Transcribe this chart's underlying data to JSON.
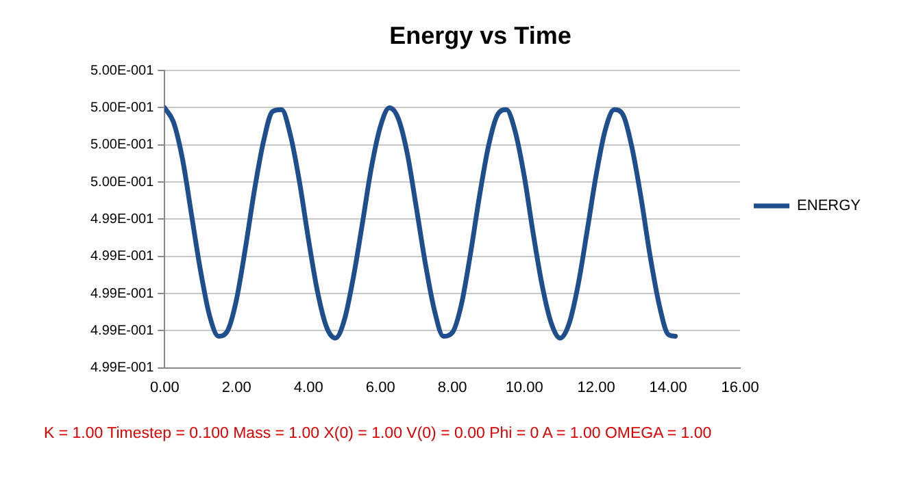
{
  "chart_data": {
    "type": "line",
    "title": "Energy vs Time",
    "x": [
      0,
      0.25,
      0.5,
      0.75,
      1,
      1.25,
      1.5,
      1.75,
      2,
      2.25,
      2.5,
      2.75,
      3,
      3.25,
      3.5,
      3.75,
      4,
      4.25,
      4.5,
      4.75,
      5,
      5.25,
      5.5,
      5.75,
      6,
      6.25,
      6.5,
      6.75,
      7,
      7.25,
      7.5,
      7.75,
      8,
      8.25,
      8.5,
      8.75,
      9,
      9.25,
      9.5,
      9.75,
      10,
      10.25,
      10.5,
      10.75,
      11,
      11.25,
      11.5,
      11.75,
      12,
      12.25,
      12.5,
      12.75,
      13,
      13.25,
      13.5,
      13.75,
      14,
      14.2
    ],
    "series": [
      {
        "name": "ENERGY",
        "color": "#1f4e8c",
        "values": [
          0.5,
          0.49992,
          0.49972,
          0.49942,
          0.49912,
          0.49888,
          0.49877,
          0.4988,
          0.49897,
          0.49925,
          0.49956,
          0.49982,
          0.49998,
          0.49999,
          0.49985,
          0.4996,
          0.49929,
          0.49901,
          0.49882,
          0.49876,
          0.49886,
          0.49909,
          0.49938,
          0.49968,
          0.4999,
          0.5,
          0.49994,
          0.49975,
          0.49946,
          0.49916,
          0.49891,
          0.49877,
          0.49879,
          0.49894,
          0.49921,
          0.49952,
          0.49979,
          0.49996,
          0.49999,
          0.49987,
          0.49963,
          0.49932,
          0.49904,
          0.49884,
          0.49876,
          0.49884,
          0.49905,
          0.49934,
          0.49964,
          0.49988,
          0.49999,
          0.49996,
          0.49978,
          0.49951,
          0.4992,
          0.49894,
          0.49878,
          0.49877
        ]
      }
    ],
    "xlim": [
      0,
      16
    ],
    "xticks": [
      {
        "value": 0,
        "label": "0.00"
      },
      {
        "value": 2,
        "label": "2.00"
      },
      {
        "value": 4,
        "label": "4.00"
      },
      {
        "value": 6,
        "label": "6.00"
      },
      {
        "value": 8,
        "label": "8.00"
      },
      {
        "value": 10,
        "label": "10.00"
      },
      {
        "value": 12,
        "label": "12.00"
      },
      {
        "value": 14,
        "label": "14.00"
      },
      {
        "value": 16,
        "label": "16.00"
      }
    ],
    "ylim": [
      0.4986,
      0.5002
    ],
    "yticks": [
      {
        "value": 0.4986,
        "label": "4.99E-001"
      },
      {
        "value": 0.4988,
        "label": "4.99E-001"
      },
      {
        "value": 0.499,
        "label": "4.99E-001"
      },
      {
        "value": 0.4992,
        "label": "4.99E-001"
      },
      {
        "value": 0.4994,
        "label": "4.99E-001"
      },
      {
        "value": 0.4996,
        "label": "5.00E-001"
      },
      {
        "value": 0.4998,
        "label": "5.00E-001"
      },
      {
        "value": 0.5,
        "label": "5.00E-001"
      },
      {
        "value": 0.5002,
        "label": "5.00E-001"
      }
    ],
    "grid": "y",
    "legend": "right",
    "marker": "none",
    "line_style": "solid",
    "annotations": [
      "K = 1.00 Timestep = 0.100 Mass = 1.00 X(0) = 1.00 V(0) = 0.00 Phi = 0 A = 1.00 OMEGA = 1.00"
    ]
  }
}
